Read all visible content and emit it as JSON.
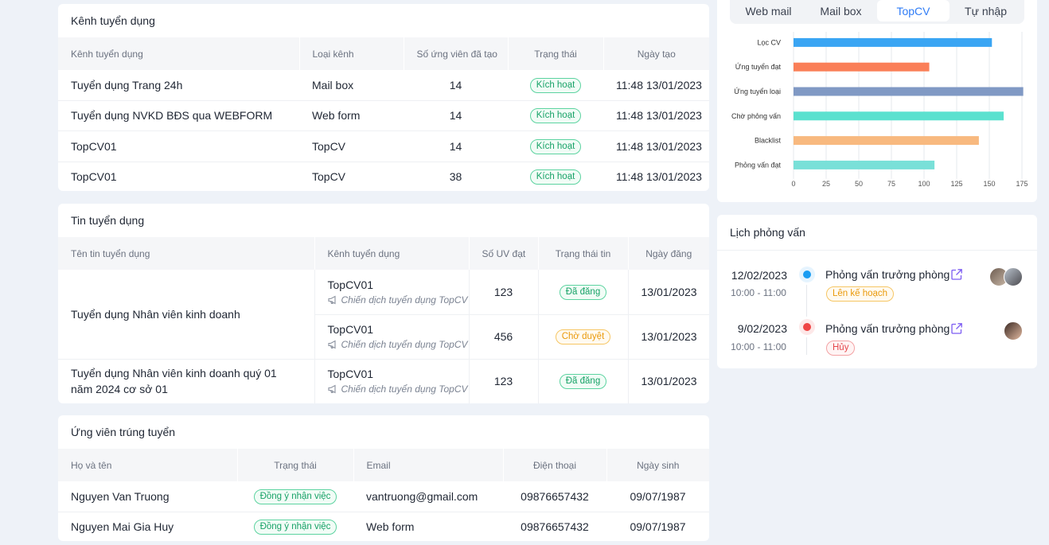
{
  "channels": {
    "title": "Kênh tuyển dụng",
    "headers": [
      "Kênh tuyển dụng",
      "Loại kênh",
      "Số ứng viên đã tạo",
      "Trạng thái",
      "Ngày tạo"
    ],
    "rows": [
      {
        "name": "Tuyển dụng Trang 24h",
        "type": "Mail box",
        "count": "14",
        "status": "Kích hoạt",
        "date": "11:48 13/01/2023"
      },
      {
        "name": "Tuyển dụng NVKD BĐS qua WEBFORM",
        "type": "Web form",
        "count": "14",
        "status": "Kích hoạt",
        "date": "11:48 13/01/2023"
      },
      {
        "name": "TopCV01",
        "type": "TopCV",
        "count": "14",
        "status": "Kích hoạt",
        "date": "11:48 13/01/2023"
      },
      {
        "name": "TopCV01",
        "type": "TopCV",
        "count": "38",
        "status": "Kích hoạt",
        "date": "11:48 13/01/2023"
      }
    ]
  },
  "jobs": {
    "title": "Tin tuyển dụng",
    "headers": [
      "Tên tin tuyển dụng",
      "Kênh tuyển dụng",
      "Số UV đạt",
      "Trạng thái tin",
      "Ngày đăng"
    ],
    "groups": [
      {
        "name": "Tuyển dụng Nhân viên kinh doanh",
        "channels": [
          {
            "channel": "TopCV01",
            "campaign": "Chiến dịch tuyển dụng TopCV",
            "count": "123",
            "status": "Đã đăng",
            "status_color": "green",
            "date": "13/01/2023"
          },
          {
            "channel": "TopCV01",
            "campaign": "Chiến dịch tuyển dụng TopCV",
            "count": "456",
            "status": "Chờ duyệt",
            "status_color": "orange",
            "date": "13/01/2023"
          }
        ]
      },
      {
        "name": "Tuyển dụng Nhân viên kinh doanh quý 01 năm 2024 cơ sở 01",
        "channels": [
          {
            "channel": "TopCV01",
            "campaign": "Chiến dịch tuyển dụng TopCV",
            "count": "123",
            "status": "Đã đăng",
            "status_color": "green",
            "date": "13/01/2023"
          }
        ]
      }
    ]
  },
  "hired": {
    "title": "Ứng viên trúng tuyển",
    "headers": [
      "Họ và tên",
      "Trạng thái",
      "Email",
      "Điện thoại",
      "Ngày sinh"
    ],
    "rows": [
      {
        "name": "Nguyen Van Truong",
        "status": "Đồng ý nhận việc",
        "email": "vantruong@gmail.com",
        "phone": "09876657432",
        "dob": "09/07/1987"
      },
      {
        "name": "Nguyen Mai Gia Huy",
        "status": "Đồng ý nhận việc",
        "email": "Web form",
        "phone": "09876657432",
        "dob": "09/07/1987"
      }
    ]
  },
  "source_tabs": {
    "items": [
      "Web mail",
      "Mail box",
      "TopCV",
      "Tự nhập"
    ],
    "active": "TopCV",
    "accent": "#2f7cf6"
  },
  "chart_data": {
    "type": "bar",
    "orientation": "horizontal",
    "categories": [
      "Lọc CV",
      "Ứng tuyển đạt",
      "Ứng tuyển loại",
      "Chờ phỏng vấn",
      "Blacklist",
      "Phỏng vấn đạt"
    ],
    "values": [
      152,
      104,
      176,
      161,
      142,
      108
    ],
    "colors": [
      "#3aa5f3",
      "#fa7f58",
      "#8099c4",
      "#5be1cf",
      "#f8b97f",
      "#79e0d8"
    ],
    "xticks": [
      0,
      25,
      50,
      75,
      100,
      125,
      150,
      175
    ],
    "xlim": [
      0,
      175
    ],
    "grid": true
  },
  "interviews": {
    "title": "Lịch phỏng vấn",
    "items": [
      {
        "date": "12/02/2023",
        "time": "10:00 - 11:00",
        "title": "Phỏng vấn trưởng phòng",
        "status": "Lên kế hoạch",
        "status_color": "orange",
        "dot_color": "#1a9df2"
      },
      {
        "date": "9/02/2023",
        "time": "10:00 - 11:00",
        "title": "Phỏng vấn trưởng phòng",
        "status": "Hủy",
        "status_color": "red",
        "dot_color": "#ef4444"
      }
    ]
  }
}
